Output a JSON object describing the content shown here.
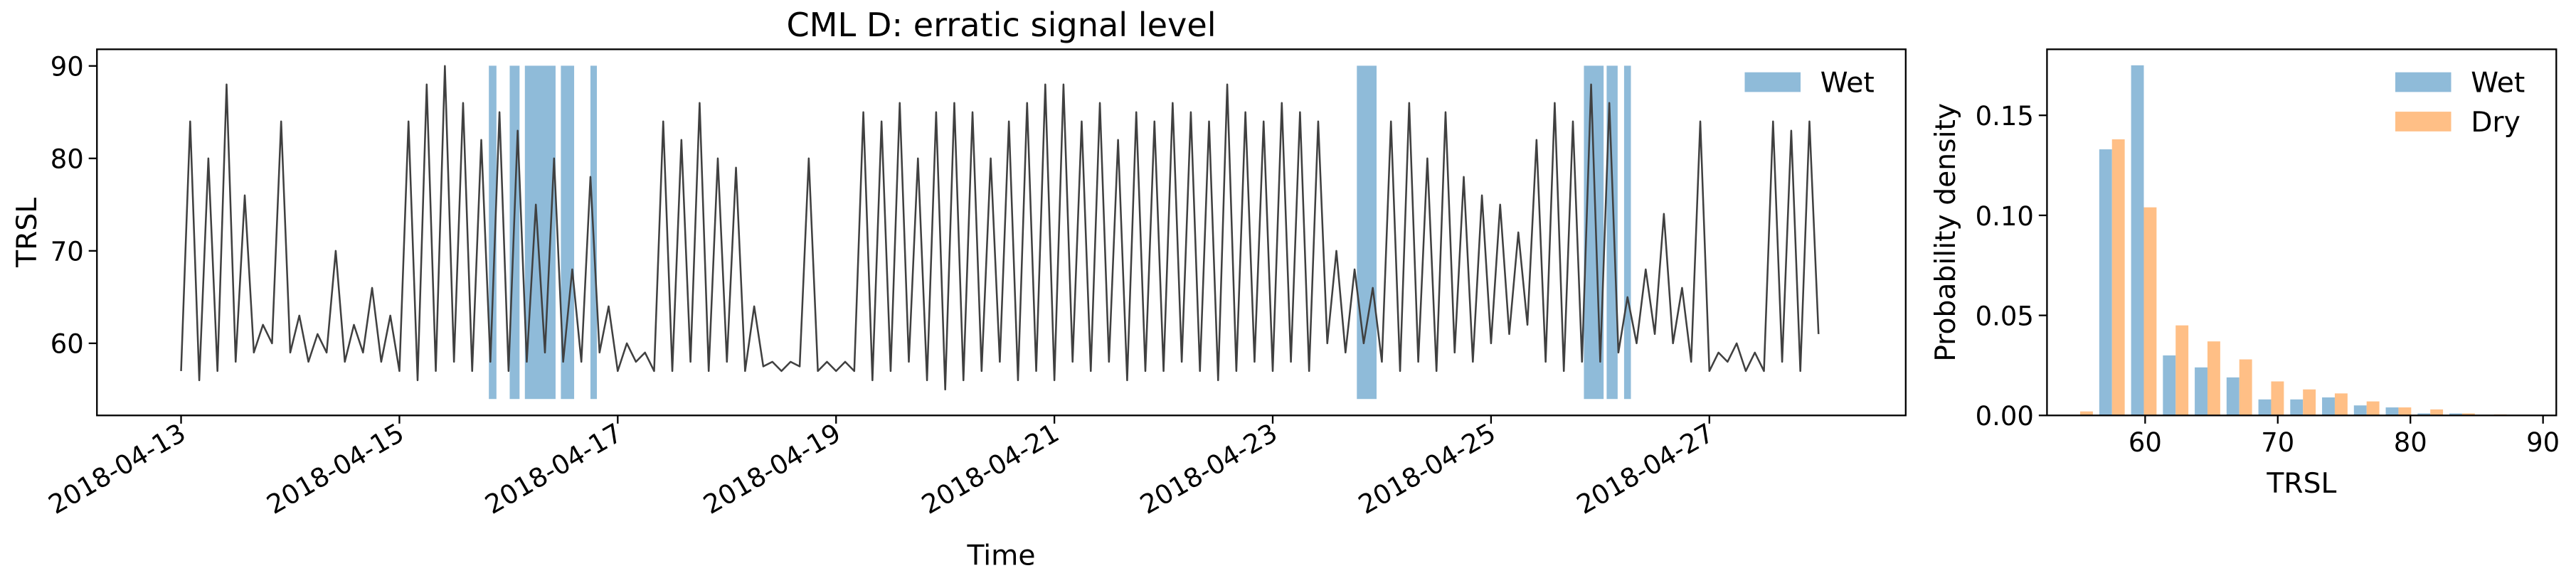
{
  "chart_data": [
    {
      "type": "line",
      "title": "CML D: erratic signal level",
      "x_label": "Time",
      "y_label": "TRSL",
      "color": "#404040",
      "x": [
        "2018-04-13 00:00",
        "2018-04-13 02:00",
        "2018-04-13 04:00",
        "2018-04-13 06:00",
        "2018-04-13 08:00",
        "2018-04-13 10:00",
        "2018-04-13 12:00",
        "2018-04-13 14:00",
        "2018-04-13 16:00",
        "2018-04-13 18:00",
        "2018-04-13 20:00",
        "2018-04-13 22:00",
        "2018-04-14 00:00",
        "2018-04-14 02:00",
        "2018-04-14 04:00",
        "2018-04-14 06:00",
        "2018-04-14 08:00",
        "2018-04-14 10:00",
        "2018-04-14 12:00",
        "2018-04-14 14:00",
        "2018-04-14 16:00",
        "2018-04-14 18:00",
        "2018-04-14 20:00",
        "2018-04-14 22:00",
        "2018-04-15 00:00",
        "2018-04-15 02:00",
        "2018-04-15 04:00",
        "2018-04-15 06:00",
        "2018-04-15 08:00",
        "2018-04-15 10:00",
        "2018-04-15 12:00",
        "2018-04-15 14:00",
        "2018-04-15 16:00",
        "2018-04-15 18:00",
        "2018-04-15 20:00",
        "2018-04-15 22:00",
        "2018-04-16 00:00",
        "2018-04-16 02:00",
        "2018-04-16 04:00",
        "2018-04-16 06:00",
        "2018-04-16 08:00",
        "2018-04-16 10:00",
        "2018-04-16 12:00",
        "2018-04-16 14:00",
        "2018-04-16 16:00",
        "2018-04-16 18:00",
        "2018-04-16 20:00",
        "2018-04-16 22:00",
        "2018-04-17 00:00",
        "2018-04-17 02:00",
        "2018-04-17 04:00",
        "2018-04-17 06:00",
        "2018-04-17 08:00",
        "2018-04-17 10:00",
        "2018-04-17 12:00",
        "2018-04-17 14:00",
        "2018-04-17 16:00",
        "2018-04-17 18:00",
        "2018-04-17 20:00",
        "2018-04-17 22:00",
        "2018-04-18 00:00",
        "2018-04-18 02:00",
        "2018-04-18 04:00",
        "2018-04-18 06:00",
        "2018-04-18 08:00",
        "2018-04-18 10:00",
        "2018-04-18 12:00",
        "2018-04-18 14:00",
        "2018-04-18 16:00",
        "2018-04-18 18:00",
        "2018-04-18 20:00",
        "2018-04-18 22:00",
        "2018-04-19 00:00",
        "2018-04-19 02:00",
        "2018-04-19 04:00",
        "2018-04-19 06:00",
        "2018-04-19 08:00",
        "2018-04-19 10:00",
        "2018-04-19 12:00",
        "2018-04-19 14:00",
        "2018-04-19 16:00",
        "2018-04-19 18:00",
        "2018-04-19 20:00",
        "2018-04-19 22:00",
        "2018-04-20 00:00",
        "2018-04-20 02:00",
        "2018-04-20 04:00",
        "2018-04-20 06:00",
        "2018-04-20 08:00",
        "2018-04-20 10:00",
        "2018-04-20 12:00",
        "2018-04-20 14:00",
        "2018-04-20 16:00",
        "2018-04-20 18:00",
        "2018-04-20 20:00",
        "2018-04-20 22:00",
        "2018-04-21 00:00",
        "2018-04-21 02:00",
        "2018-04-21 04:00",
        "2018-04-21 06:00",
        "2018-04-21 08:00",
        "2018-04-21 10:00",
        "2018-04-21 12:00",
        "2018-04-21 14:00",
        "2018-04-21 16:00",
        "2018-04-21 18:00",
        "2018-04-21 20:00",
        "2018-04-21 22:00",
        "2018-04-22 00:00",
        "2018-04-22 02:00",
        "2018-04-22 04:00",
        "2018-04-22 06:00",
        "2018-04-22 08:00",
        "2018-04-22 10:00",
        "2018-04-22 12:00",
        "2018-04-22 14:00",
        "2018-04-22 16:00",
        "2018-04-22 18:00",
        "2018-04-22 20:00",
        "2018-04-22 22:00",
        "2018-04-23 00:00",
        "2018-04-23 02:00",
        "2018-04-23 04:00",
        "2018-04-23 06:00",
        "2018-04-23 08:00",
        "2018-04-23 10:00",
        "2018-04-23 12:00",
        "2018-04-23 14:00",
        "2018-04-23 16:00",
        "2018-04-23 18:00",
        "2018-04-23 20:00",
        "2018-04-23 22:00",
        "2018-04-24 00:00",
        "2018-04-24 02:00",
        "2018-04-24 04:00",
        "2018-04-24 06:00",
        "2018-04-24 08:00",
        "2018-04-24 10:00",
        "2018-04-24 12:00",
        "2018-04-24 14:00",
        "2018-04-24 16:00",
        "2018-04-24 18:00",
        "2018-04-24 20:00",
        "2018-04-24 22:00",
        "2018-04-25 00:00",
        "2018-04-25 02:00",
        "2018-04-25 04:00",
        "2018-04-25 06:00",
        "2018-04-25 08:00",
        "2018-04-25 10:00",
        "2018-04-25 12:00",
        "2018-04-25 14:00",
        "2018-04-25 16:00",
        "2018-04-25 18:00",
        "2018-04-25 20:00",
        "2018-04-25 22:00",
        "2018-04-26 00:00",
        "2018-04-26 02:00",
        "2018-04-26 04:00",
        "2018-04-26 06:00",
        "2018-04-26 08:00",
        "2018-04-26 10:00",
        "2018-04-26 12:00",
        "2018-04-26 14:00",
        "2018-04-26 16:00",
        "2018-04-26 18:00",
        "2018-04-26 20:00",
        "2018-04-26 22:00",
        "2018-04-27 00:00",
        "2018-04-27 02:00",
        "2018-04-27 04:00",
        "2018-04-27 06:00",
        "2018-04-27 08:00",
        "2018-04-27 10:00",
        "2018-04-27 12:00",
        "2018-04-27 14:00",
        "2018-04-27 16:00",
        "2018-04-27 18:00",
        "2018-04-27 20:00",
        "2018-04-27 22:00",
        "2018-04-28 00:00"
      ],
      "values": [
        57,
        84,
        56,
        80,
        57,
        88,
        58,
        76,
        59,
        62,
        60,
        84,
        59,
        63,
        58,
        61,
        59,
        70,
        58,
        62,
        59,
        66,
        58,
        63,
        57,
        84,
        56,
        88,
        57,
        90,
        58,
        86,
        57,
        82,
        58,
        85,
        57,
        83,
        58,
        75,
        59,
        80,
        58,
        68,
        58,
        78,
        59,
        64,
        57,
        60,
        58,
        59,
        57,
        84,
        57,
        82,
        58,
        86,
        57,
        80,
        58,
        79,
        57,
        64,
        57.5,
        58,
        57,
        58,
        57.5,
        80,
        57,
        58,
        57,
        58,
        57,
        85,
        56,
        84,
        57,
        86,
        58,
        80,
        56,
        85,
        55,
        86,
        56,
        85,
        57,
        80,
        58,
        84,
        56,
        86,
        57,
        88,
        56,
        88,
        58,
        84,
        57,
        86,
        58,
        82,
        56,
        85,
        57,
        84,
        57,
        86,
        58,
        85,
        57,
        84,
        56,
        88,
        57,
        85,
        58,
        84,
        57,
        86,
        58,
        85,
        57,
        84,
        60,
        70,
        59,
        68,
        60,
        66,
        58,
        84,
        57,
        86,
        58,
        80,
        57,
        85,
        59,
        78,
        58,
        76,
        60,
        75,
        61,
        72,
        62,
        82,
        58,
        86,
        57,
        84,
        58,
        88,
        58,
        86,
        59,
        65,
        60,
        68,
        61,
        74,
        60,
        66,
        58,
        84,
        57,
        59,
        58,
        60,
        57,
        59,
        57,
        84,
        58,
        83,
        57,
        84,
        61
      ],
      "spans": {
        "name": "Wet",
        "color": "#8fbbd9",
        "periods": [
          [
            "2018-04-15 19:40",
            "2018-04-15 21:20"
          ],
          [
            "2018-04-16 00:15",
            "2018-04-16 02:25"
          ],
          [
            "2018-04-16 03:35",
            "2018-04-16 10:20"
          ],
          [
            "2018-04-16 11:30",
            "2018-04-16 14:25"
          ],
          [
            "2018-04-16 18:00",
            "2018-04-16 19:25"
          ],
          [
            "2018-04-23 18:30",
            "2018-04-23 22:50"
          ],
          [
            "2018-04-25 20:25",
            "2018-04-26 00:45"
          ],
          [
            "2018-04-26 01:25",
            "2018-04-26 03:50"
          ],
          [
            "2018-04-26 05:15",
            "2018-04-26 06:45"
          ]
        ]
      },
      "xlim": [
        "2018-04-12 05:30",
        "2018-04-28 19:10"
      ],
      "ylim": [
        52.2,
        91.8
      ],
      "xticks": [
        "2018-04-13",
        "2018-04-15",
        "2018-04-17",
        "2018-04-19",
        "2018-04-21",
        "2018-04-23",
        "2018-04-25",
        "2018-04-27"
      ],
      "yticks": [
        60,
        70,
        80,
        90
      ],
      "legend": "upper right"
    },
    {
      "type": "histogram",
      "x_label": "TRSL",
      "y_label": "Probability density",
      "bins": [
        53.9,
        56.3,
        58.7,
        61.1,
        63.5,
        65.9,
        68.3,
        70.7,
        73.1,
        75.5,
        77.9,
        80.3,
        82.7,
        85.1,
        87.5,
        89.9
      ],
      "series": [
        {
          "name": "Wet",
          "color": "#8fbbd9",
          "values": [
            0,
            0.133,
            0.175,
            0.03,
            0.024,
            0.019,
            0.008,
            0.008,
            0.009,
            0.005,
            0.004,
            0.001,
            0.001,
            0,
            0
          ]
        },
        {
          "name": "Dry",
          "color": "#ffbf86",
          "values": [
            0.002,
            0.138,
            0.104,
            0.045,
            0.037,
            0.028,
            0.017,
            0.013,
            0.011,
            0.007,
            0.004,
            0.003,
            0.001,
            0.0005,
            0
          ]
        }
      ],
      "xlim": [
        52.6,
        91.0
      ],
      "ylim": [
        0,
        0.183
      ],
      "xticks": [
        60,
        70,
        80,
        90
      ],
      "yticks": [
        {
          "value": 0,
          "label": "0.00"
        },
        {
          "value": 0.05,
          "label": "0.05"
        },
        {
          "value": 0.1,
          "label": "0.10"
        },
        {
          "value": 0.15,
          "label": "0.15"
        }
      ],
      "legend": "upper right"
    }
  ]
}
